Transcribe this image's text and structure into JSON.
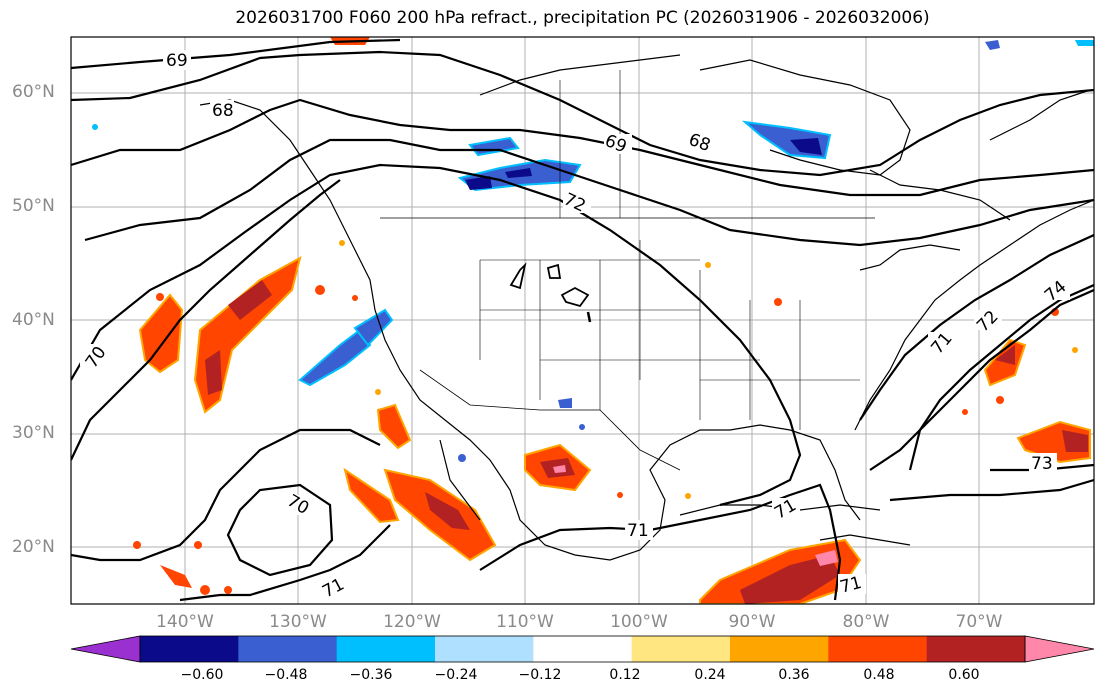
{
  "title": "2026031700 F060 200 hPa refract., precipitation PC (2026031906 - 2026032006)",
  "map": {
    "lat_labels": [
      "60°N",
      "50°N",
      "40°N",
      "30°N",
      "20°N"
    ],
    "lon_labels": [
      "140°W",
      "130°W",
      "120°W",
      "110°W",
      "100°W",
      "90°W",
      "80°W",
      "70°W"
    ],
    "contour_labels": [
      "69",
      "68",
      "69",
      "68",
      "72",
      "70",
      "70",
      "71",
      "71",
      "71",
      "71",
      "71",
      "72",
      "74",
      "73"
    ],
    "field_label": "precipitation PC"
  },
  "colorbar": {
    "tick_labels": [
      "−0.60",
      "−0.48",
      "−0.36",
      "−0.24",
      "−0.12",
      "0.12",
      "0.24",
      "0.36",
      "0.48",
      "0.60"
    ],
    "colors": [
      "#9b30d0",
      "#0a0a8a",
      "#3a5fd0",
      "#00bfff",
      "#b0e0ff",
      "#ffffff",
      "#ffe680",
      "#ffa500",
      "#ff4500",
      "#b22222",
      "#ff88aa"
    ]
  },
  "colors": {
    "land_border": "#000000",
    "grid": "#b0b0b0",
    "axis_label": "#8a8a8a"
  }
}
